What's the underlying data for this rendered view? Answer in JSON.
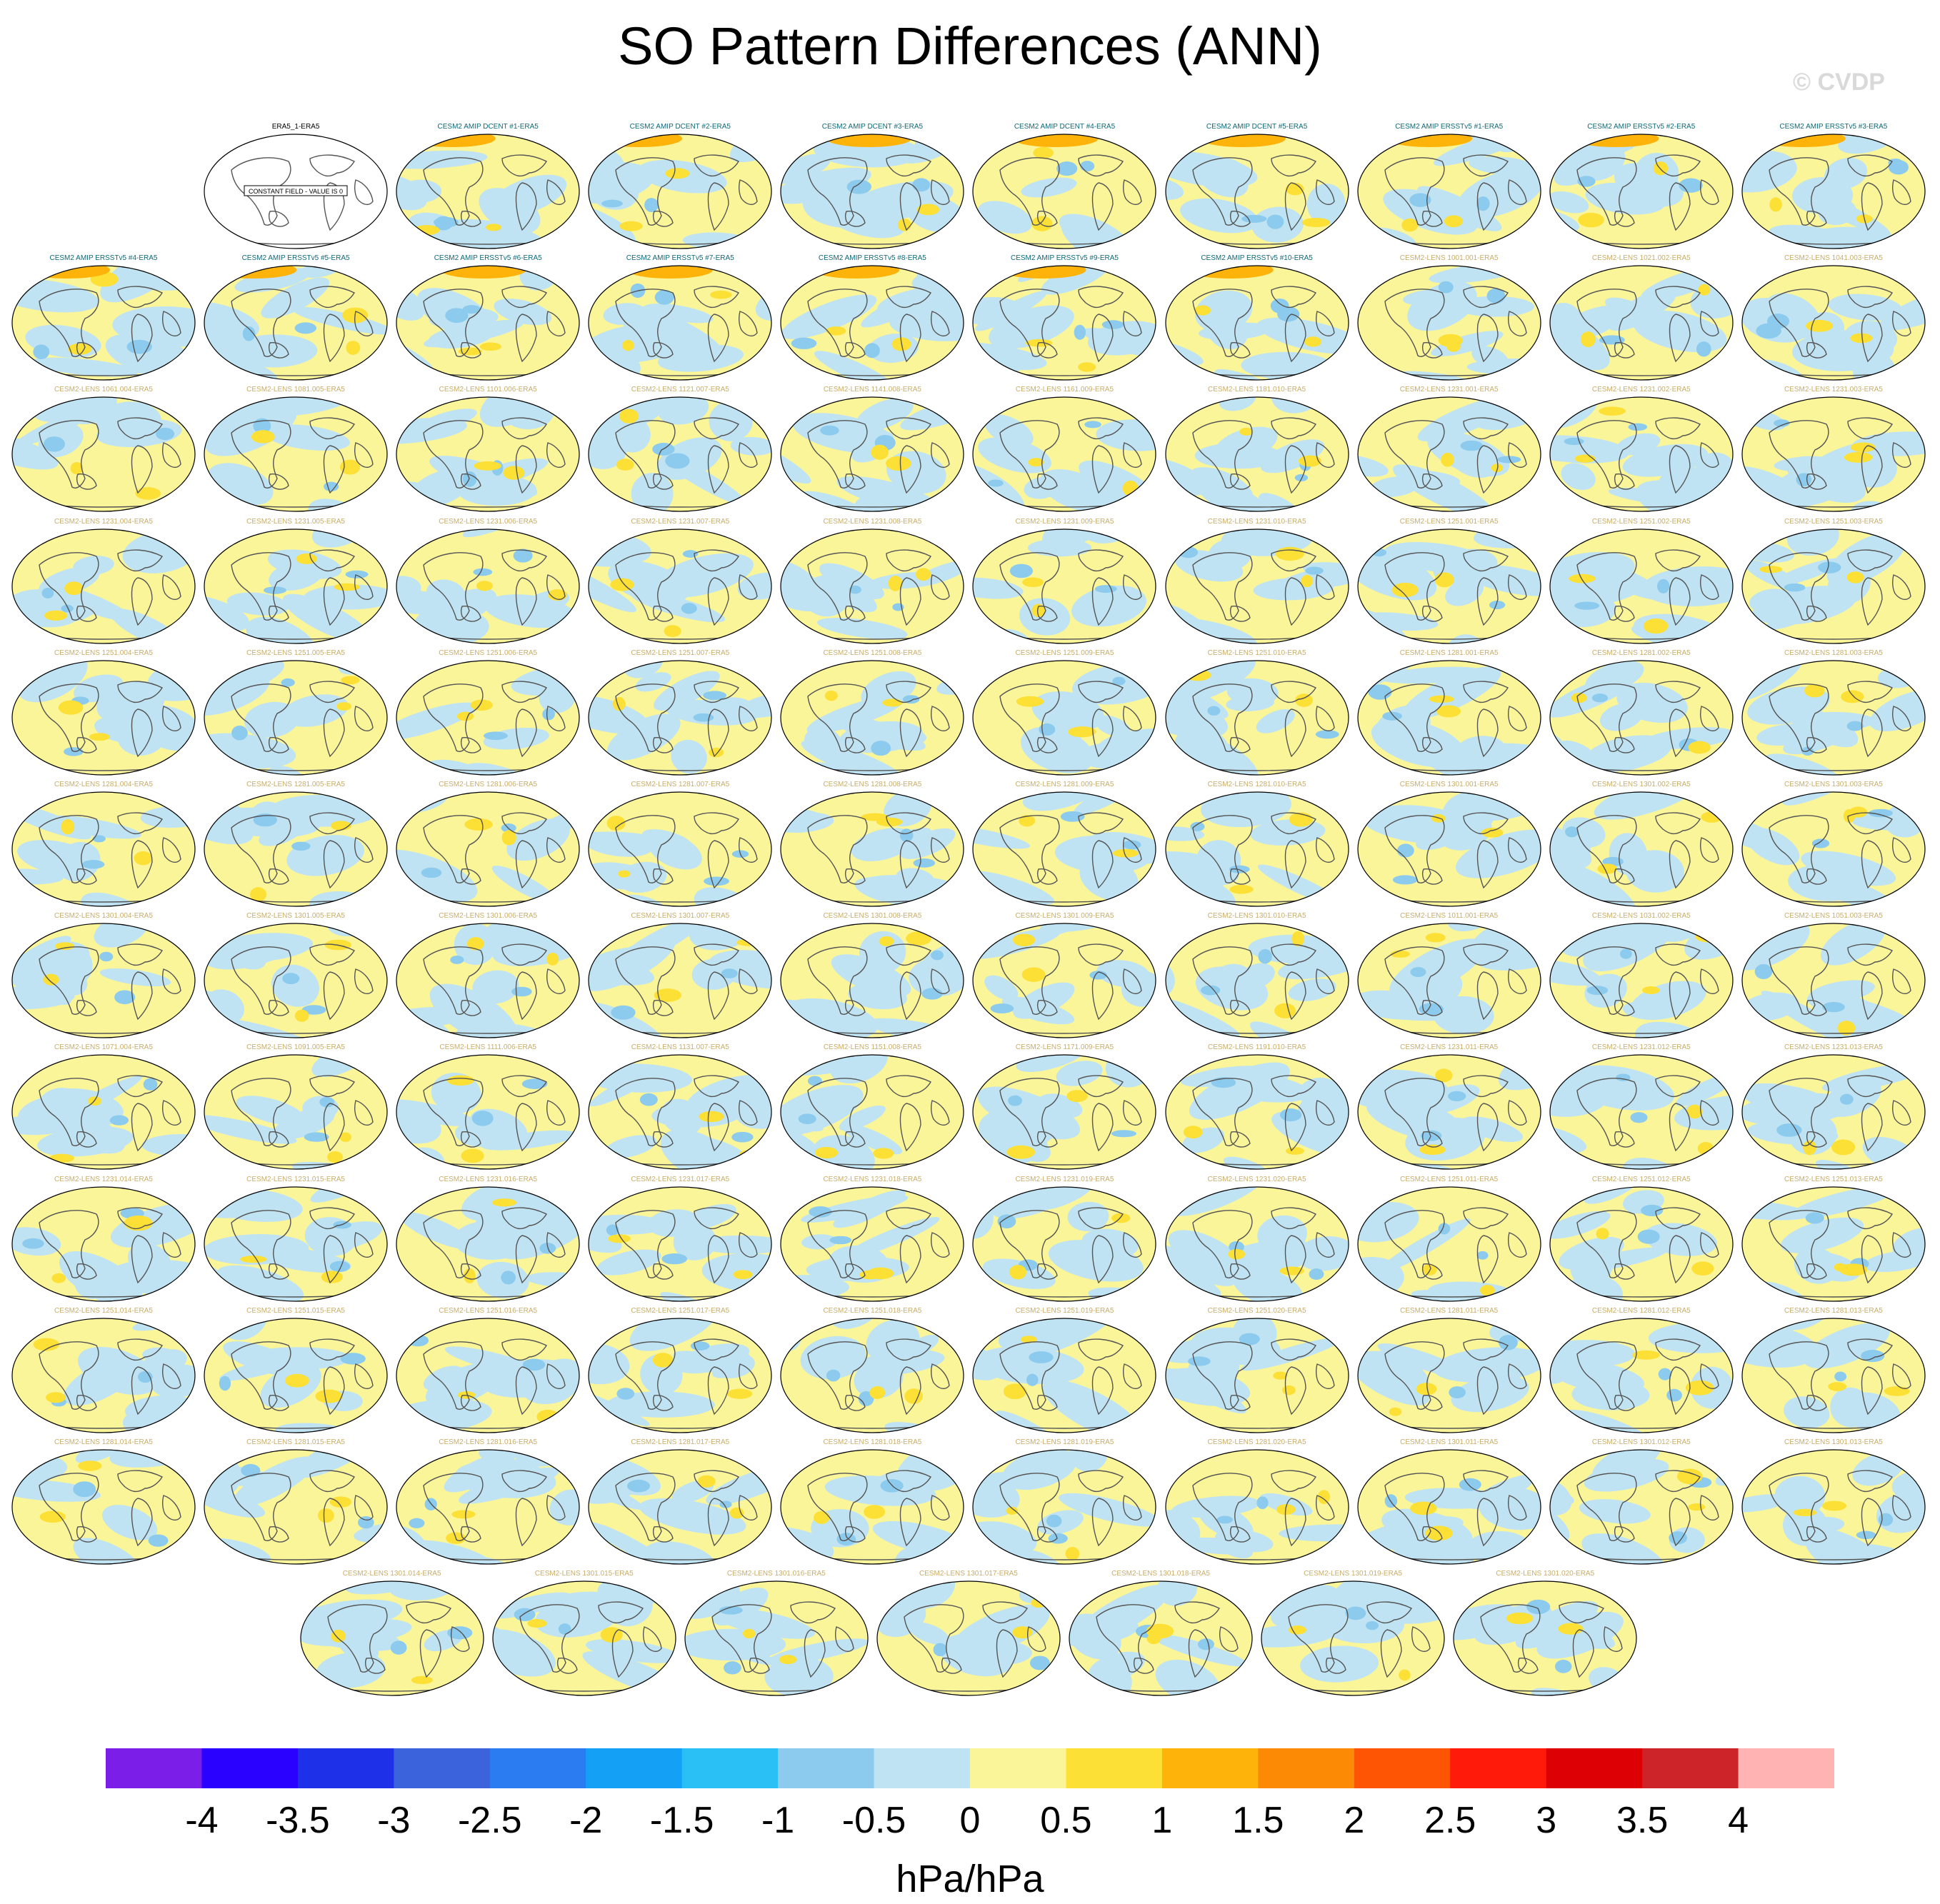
{
  "title": "SO Pattern Differences (ANN)",
  "watermark": "© CVDP",
  "chart_data": {
    "type": "heatmap",
    "title": "SO Pattern Differences (ANN)",
    "colorbar": {
      "label": "hPa/hPa",
      "ticks": [
        "-4",
        "-3.5",
        "-3",
        "-2.5",
        "-2",
        "-1.5",
        "-1",
        "-0.5",
        "0",
        "0.5",
        "1",
        "1.5",
        "2",
        "2.5",
        "3",
        "3.5",
        "4"
      ],
      "colors": [
        "#7b1fe8",
        "#2a00ff",
        "#1e30e8",
        "#3a63dc",
        "#2a7cf0",
        "#14a0f5",
        "#2abff5",
        "#8ccbee",
        "#bfe3f2",
        "#fbf59a",
        "#fde035",
        "#fdb30a",
        "#fd8a05",
        "#fd5503",
        "#ff1a0a",
        "#dd0005",
        "#cc2428",
        "#ffb3b3"
      ]
    },
    "panel_title_colors": {
      "reference": "#000000",
      "amip": "#0f6878",
      "lens": "#c8ad69"
    },
    "panels": [
      {
        "title": "ERA5_1-ERA5",
        "group": "reference",
        "note": "CONSTANT FIELD - VALUE IS 0"
      },
      {
        "title": "CESM2 AMIP DCENT #1-ERA5",
        "group": "amip"
      },
      {
        "title": "CESM2 AMIP DCENT #2-ERA5",
        "group": "amip"
      },
      {
        "title": "CESM2 AMIP DCENT #3-ERA5",
        "group": "amip"
      },
      {
        "title": "CESM2 AMIP DCENT #4-ERA5",
        "group": "amip"
      },
      {
        "title": "CESM2 AMIP DCENT #5-ERA5",
        "group": "amip"
      },
      {
        "title": "CESM2 AMIP ERSSTv5 #1-ERA5",
        "group": "amip"
      },
      {
        "title": "CESM2 AMIP ERSSTv5 #2-ERA5",
        "group": "amip"
      },
      {
        "title": "CESM2 AMIP ERSSTv5 #3-ERA5",
        "group": "amip"
      },
      {
        "title": "CESM2 AMIP ERSSTv5 #4-ERA5",
        "group": "amip"
      },
      {
        "title": "CESM2 AMIP ERSSTv5 #5-ERA5",
        "group": "amip"
      },
      {
        "title": "CESM2 AMIP ERSSTv5 #6-ERA5",
        "group": "amip"
      },
      {
        "title": "CESM2 AMIP ERSSTv5 #7-ERA5",
        "group": "amip"
      },
      {
        "title": "CESM2 AMIP ERSSTv5 #8-ERA5",
        "group": "amip"
      },
      {
        "title": "CESM2 AMIP ERSSTv5 #9-ERA5",
        "group": "amip"
      },
      {
        "title": "CESM2 AMIP ERSSTv5 #10-ERA5",
        "group": "amip"
      },
      {
        "title": "CESM2-LENS 1001.001-ERA5",
        "group": "lens"
      },
      {
        "title": "CESM2-LENS 1021.002-ERA5",
        "group": "lens"
      },
      {
        "title": "CESM2-LENS 1041.003-ERA5",
        "group": "lens"
      },
      {
        "title": "CESM2-LENS 1061.004-ERA5",
        "group": "lens"
      },
      {
        "title": "CESM2-LENS 1081.005-ERA5",
        "group": "lens"
      },
      {
        "title": "CESM2-LENS 1101.006-ERA5",
        "group": "lens"
      },
      {
        "title": "CESM2-LENS 1121.007-ERA5",
        "group": "lens"
      },
      {
        "title": "CESM2-LENS 1141.008-ERA5",
        "group": "lens"
      },
      {
        "title": "CESM2-LENS 1161.009-ERA5",
        "group": "lens"
      },
      {
        "title": "CESM2-LENS 1181.010-ERA5",
        "group": "lens"
      },
      {
        "title": "CESM2-LENS 1231.001-ERA5",
        "group": "lens"
      },
      {
        "title": "CESM2-LENS 1231.002-ERA5",
        "group": "lens"
      },
      {
        "title": "CESM2-LENS 1231.003-ERA5",
        "group": "lens"
      },
      {
        "title": "CESM2-LENS 1231.004-ERA5",
        "group": "lens"
      },
      {
        "title": "CESM2-LENS 1231.005-ERA5",
        "group": "lens"
      },
      {
        "title": "CESM2-LENS 1231.006-ERA5",
        "group": "lens"
      },
      {
        "title": "CESM2-LENS 1231.007-ERA5",
        "group": "lens"
      },
      {
        "title": "CESM2-LENS 1231.008-ERA5",
        "group": "lens"
      },
      {
        "title": "CESM2-LENS 1231.009-ERA5",
        "group": "lens"
      },
      {
        "title": "CESM2-LENS 1231.010-ERA5",
        "group": "lens"
      },
      {
        "title": "CESM2-LENS 1251.001-ERA5",
        "group": "lens"
      },
      {
        "title": "CESM2-LENS 1251.002-ERA5",
        "group": "lens"
      },
      {
        "title": "CESM2-LENS 1251.003-ERA5",
        "group": "lens"
      },
      {
        "title": "CESM2-LENS 1251.004-ERA5",
        "group": "lens"
      },
      {
        "title": "CESM2-LENS 1251.005-ERA5",
        "group": "lens"
      },
      {
        "title": "CESM2-LENS 1251.006-ERA5",
        "group": "lens"
      },
      {
        "title": "CESM2-LENS 1251.007-ERA5",
        "group": "lens"
      },
      {
        "title": "CESM2-LENS 1251.008-ERA5",
        "group": "lens"
      },
      {
        "title": "CESM2-LENS 1251.009-ERA5",
        "group": "lens"
      },
      {
        "title": "CESM2-LENS 1251.010-ERA5",
        "group": "lens"
      },
      {
        "title": "CESM2-LENS 1281.001-ERA5",
        "group": "lens"
      },
      {
        "title": "CESM2-LENS 1281.002-ERA5",
        "group": "lens"
      },
      {
        "title": "CESM2-LENS 1281.003-ERA5",
        "group": "lens"
      },
      {
        "title": "CESM2-LENS 1281.004-ERA5",
        "group": "lens"
      },
      {
        "title": "CESM2-LENS 1281.005-ERA5",
        "group": "lens"
      },
      {
        "title": "CESM2-LENS 1281.006-ERA5",
        "group": "lens"
      },
      {
        "title": "CESM2-LENS 1281.007-ERA5",
        "group": "lens"
      },
      {
        "title": "CESM2-LENS 1281.008-ERA5",
        "group": "lens"
      },
      {
        "title": "CESM2-LENS 1281.009-ERA5",
        "group": "lens"
      },
      {
        "title": "CESM2-LENS 1281.010-ERA5",
        "group": "lens"
      },
      {
        "title": "CESM2-LENS 1301.001-ERA5",
        "group": "lens"
      },
      {
        "title": "CESM2-LENS 1301.002-ERA5",
        "group": "lens"
      },
      {
        "title": "CESM2-LENS 1301.003-ERA5",
        "group": "lens"
      },
      {
        "title": "CESM2-LENS 1301.004-ERA5",
        "group": "lens"
      },
      {
        "title": "CESM2-LENS 1301.005-ERA5",
        "group": "lens"
      },
      {
        "title": "CESM2-LENS 1301.006-ERA5",
        "group": "lens"
      },
      {
        "title": "CESM2-LENS 1301.007-ERA5",
        "group": "lens"
      },
      {
        "title": "CESM2-LENS 1301.008-ERA5",
        "group": "lens"
      },
      {
        "title": "CESM2-LENS 1301.009-ERA5",
        "group": "lens"
      },
      {
        "title": "CESM2-LENS 1301.010-ERA5",
        "group": "lens"
      },
      {
        "title": "CESM2-LENS 1011.001-ERA5",
        "group": "lens"
      },
      {
        "title": "CESM2-LENS 1031.002-ERA5",
        "group": "lens"
      },
      {
        "title": "CESM2-LENS 1051.003-ERA5",
        "group": "lens"
      },
      {
        "title": "CESM2-LENS 1071.004-ERA5",
        "group": "lens"
      },
      {
        "title": "CESM2-LENS 1091.005-ERA5",
        "group": "lens"
      },
      {
        "title": "CESM2-LENS 1111.006-ERA5",
        "group": "lens"
      },
      {
        "title": "CESM2-LENS 1131.007-ERA5",
        "group": "lens"
      },
      {
        "title": "CESM2-LENS 1151.008-ERA5",
        "group": "lens"
      },
      {
        "title": "CESM2-LENS 1171.009-ERA5",
        "group": "lens"
      },
      {
        "title": "CESM2-LENS 1191.010-ERA5",
        "group": "lens"
      },
      {
        "title": "CESM2-LENS 1231.011-ERA5",
        "group": "lens"
      },
      {
        "title": "CESM2-LENS 1231.012-ERA5",
        "group": "lens"
      },
      {
        "title": "CESM2-LENS 1231.013-ERA5",
        "group": "lens"
      },
      {
        "title": "CESM2-LENS 1231.014-ERA5",
        "group": "lens"
      },
      {
        "title": "CESM2-LENS 1231.015-ERA5",
        "group": "lens"
      },
      {
        "title": "CESM2-LENS 1231.016-ERA5",
        "group": "lens"
      },
      {
        "title": "CESM2-LENS 1231.017-ERA5",
        "group": "lens"
      },
      {
        "title": "CESM2-LENS 1231.018-ERA5",
        "group": "lens"
      },
      {
        "title": "CESM2-LENS 1231.019-ERA5",
        "group": "lens"
      },
      {
        "title": "CESM2-LENS 1231.020-ERA5",
        "group": "lens"
      },
      {
        "title": "CESM2-LENS 1251.011-ERA5",
        "group": "lens"
      },
      {
        "title": "CESM2-LENS 1251.012-ERA5",
        "group": "lens"
      },
      {
        "title": "CESM2-LENS 1251.013-ERA5",
        "group": "lens"
      },
      {
        "title": "CESM2-LENS 1251.014-ERA5",
        "group": "lens"
      },
      {
        "title": "CESM2-LENS 1251.015-ERA5",
        "group": "lens"
      },
      {
        "title": "CESM2-LENS 1251.016-ERA5",
        "group": "lens"
      },
      {
        "title": "CESM2-LENS 1251.017-ERA5",
        "group": "lens"
      },
      {
        "title": "CESM2-LENS 1251.018-ERA5",
        "group": "lens"
      },
      {
        "title": "CESM2-LENS 1251.019-ERA5",
        "group": "lens"
      },
      {
        "title": "CESM2-LENS 1251.020-ERA5",
        "group": "lens"
      },
      {
        "title": "CESM2-LENS 1281.011-ERA5",
        "group": "lens"
      },
      {
        "title": "CESM2-LENS 1281.012-ERA5",
        "group": "lens"
      },
      {
        "title": "CESM2-LENS 1281.013-ERA5",
        "group": "lens"
      },
      {
        "title": "CESM2-LENS 1281.014-ERA5",
        "group": "lens"
      },
      {
        "title": "CESM2-LENS 1281.015-ERA5",
        "group": "lens"
      },
      {
        "title": "CESM2-LENS 1281.016-ERA5",
        "group": "lens"
      },
      {
        "title": "CESM2-LENS 1281.017-ERA5",
        "group": "lens"
      },
      {
        "title": "CESM2-LENS 1281.018-ERA5",
        "group": "lens"
      },
      {
        "title": "CESM2-LENS 1281.019-ERA5",
        "group": "lens"
      },
      {
        "title": "CESM2-LENS 1281.020-ERA5",
        "group": "lens"
      },
      {
        "title": "CESM2-LENS 1301.011-ERA5",
        "group": "lens"
      },
      {
        "title": "CESM2-LENS 1301.012-ERA5",
        "group": "lens"
      },
      {
        "title": "CESM2-LENS 1301.013-ERA5",
        "group": "lens"
      },
      {
        "title": "CESM2-LENS 1301.014-ERA5",
        "group": "lens"
      },
      {
        "title": "CESM2-LENS 1301.015-ERA5",
        "group": "lens"
      },
      {
        "title": "CESM2-LENS 1301.016-ERA5",
        "group": "lens"
      },
      {
        "title": "CESM2-LENS 1301.017-ERA5",
        "group": "lens"
      },
      {
        "title": "CESM2-LENS 1301.018-ERA5",
        "group": "lens"
      },
      {
        "title": "CESM2-LENS 1301.019-ERA5",
        "group": "lens"
      },
      {
        "title": "CESM2-LENS 1301.020-ERA5",
        "group": "lens"
      }
    ]
  }
}
